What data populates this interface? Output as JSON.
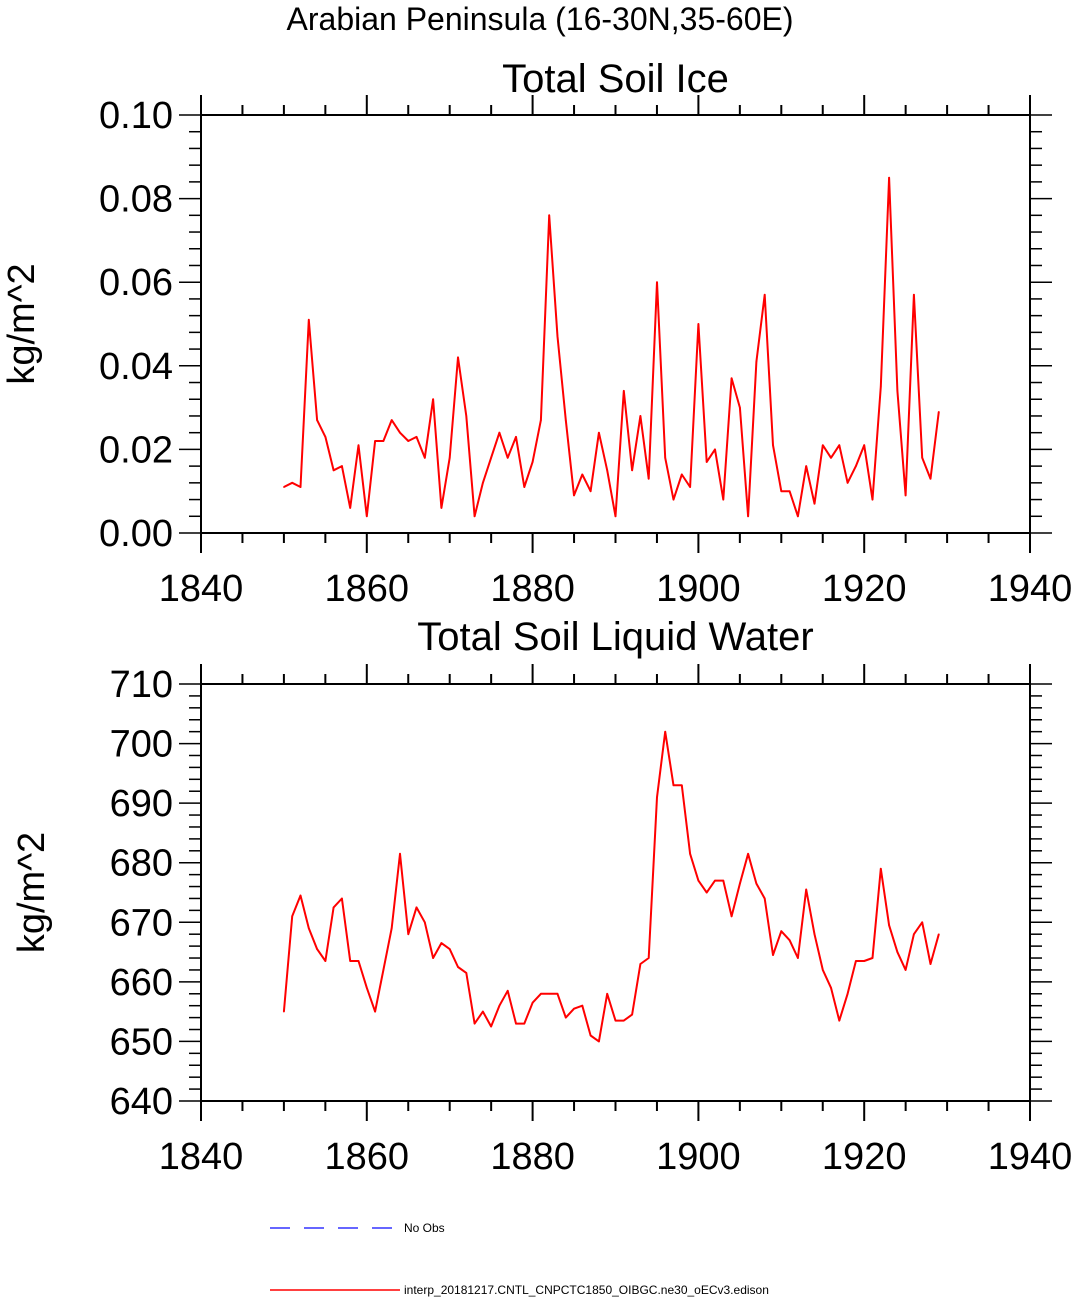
{
  "figure_title": "Arabian Peninsula (16-30N,35-60E)",
  "legend": [
    {
      "label": "No Obs",
      "color": "#3333ff",
      "style": "dashed"
    },
    {
      "label": "interp_20181217.CNTL_CNPCTC1850_OIBGC.ne30_oECv3.edison",
      "color": "#ff0000",
      "style": "solid"
    }
  ],
  "chart_data": [
    {
      "type": "line",
      "title": "Total Soil Ice",
      "xlabel": "",
      "ylabel": "kg/m^2",
      "xlim": [
        1840,
        1940
      ],
      "ylim": [
        0,
        0.1
      ],
      "xticks": [
        1840,
        1860,
        1880,
        1900,
        1920,
        1940
      ],
      "yticks": [
        0.0,
        0.02,
        0.04,
        0.06,
        0.08,
        0.1
      ],
      "ytick_labels": [
        "0.00",
        "0.02",
        "0.04",
        "0.06",
        "0.08",
        "0.10"
      ],
      "series": [
        {
          "name": "interp_20181217.CNTL_CNPCTC1850_OIBGC.ne30_oECv3.edison",
          "color": "#ff0000",
          "x": [
            1850,
            1851,
            1852,
            1853,
            1854,
            1855,
            1856,
            1857,
            1858,
            1859,
            1860,
            1861,
            1862,
            1863,
            1864,
            1865,
            1866,
            1867,
            1868,
            1869,
            1870,
            1871,
            1872,
            1873,
            1874,
            1875,
            1876,
            1877,
            1878,
            1879,
            1880,
            1881,
            1882,
            1883,
            1884,
            1885,
            1886,
            1887,
            1888,
            1889,
            1890,
            1891,
            1892,
            1893,
            1894,
            1895,
            1896,
            1897,
            1898,
            1899,
            1900,
            1901,
            1902,
            1903,
            1904,
            1905,
            1906,
            1907,
            1908,
            1909,
            1910,
            1911,
            1912,
            1913,
            1914,
            1915,
            1916,
            1917,
            1918,
            1919,
            1920,
            1921,
            1922,
            1923,
            1924,
            1925,
            1926,
            1927,
            1928,
            1929
          ],
          "values": [
            0.011,
            0.012,
            0.011,
            0.051,
            0.027,
            0.023,
            0.015,
            0.016,
            0.006,
            0.021,
            0.004,
            0.022,
            0.022,
            0.027,
            0.024,
            0.022,
            0.023,
            0.018,
            0.032,
            0.006,
            0.018,
            0.042,
            0.028,
            0.004,
            0.012,
            0.018,
            0.024,
            0.018,
            0.023,
            0.011,
            0.017,
            0.027,
            0.076,
            0.047,
            0.027,
            0.009,
            0.014,
            0.01,
            0.024,
            0.015,
            0.004,
            0.034,
            0.015,
            0.028,
            0.013,
            0.06,
            0.018,
            0.008,
            0.014,
            0.011,
            0.05,
            0.017,
            0.02,
            0.008,
            0.037,
            0.03,
            0.004,
            0.041,
            0.057,
            0.021,
            0.01,
            0.01,
            0.004,
            0.016,
            0.007,
            0.021,
            0.018,
            0.021,
            0.012,
            0.016,
            0.021,
            0.008,
            0.035,
            0.085,
            0.034,
            0.009,
            0.057,
            0.018,
            0.013,
            0.029
          ]
        }
      ]
    },
    {
      "type": "line",
      "title": "Total Soil Liquid Water",
      "xlabel": "",
      "ylabel": "kg/m^2",
      "xlim": [
        1840,
        1940
      ],
      "ylim": [
        640,
        710
      ],
      "xticks": [
        1840,
        1860,
        1880,
        1900,
        1920,
        1940
      ],
      "yticks": [
        640,
        650,
        660,
        670,
        680,
        690,
        700,
        710
      ],
      "ytick_labels": [
        "640",
        "650",
        "660",
        "670",
        "680",
        "690",
        "700",
        "710"
      ],
      "series": [
        {
          "name": "interp_20181217.CNTL_CNPCTC1850_OIBGC.ne30_oECv3.edison",
          "color": "#ff0000",
          "x": [
            1850,
            1851,
            1852,
            1853,
            1854,
            1855,
            1856,
            1857,
            1858,
            1859,
            1860,
            1861,
            1862,
            1863,
            1864,
            1865,
            1866,
            1867,
            1868,
            1869,
            1870,
            1871,
            1872,
            1873,
            1874,
            1875,
            1876,
            1877,
            1878,
            1879,
            1880,
            1881,
            1882,
            1883,
            1884,
            1885,
            1886,
            1887,
            1888,
            1889,
            1890,
            1891,
            1892,
            1893,
            1894,
            1895,
            1896,
            1897,
            1898,
            1899,
            1900,
            1901,
            1902,
            1903,
            1904,
            1905,
            1906,
            1907,
            1908,
            1909,
            1910,
            1911,
            1912,
            1913,
            1914,
            1915,
            1916,
            1917,
            1918,
            1919,
            1920,
            1921,
            1922,
            1923,
            1924,
            1925,
            1926,
            1927,
            1928,
            1929
          ],
          "values": [
            655,
            671,
            674.5,
            669,
            665.5,
            663.5,
            672.5,
            674,
            663.5,
            663.5,
            659,
            655,
            662,
            669,
            681.5,
            668,
            672.5,
            670,
            664,
            666.5,
            665.5,
            662.5,
            661.5,
            653,
            655,
            652.5,
            656,
            658.5,
            653,
            653,
            656.5,
            658,
            658,
            658,
            654,
            655.5,
            656,
            651,
            650,
            658,
            653.5,
            653.5,
            654.5,
            663,
            664,
            691,
            702,
            693,
            693,
            681.5,
            677,
            675,
            677,
            677,
            671,
            676.5,
            681.5,
            676.5,
            674,
            664.5,
            668.5,
            667,
            664,
            675.5,
            668,
            662,
            659,
            653.5,
            658,
            663.5,
            663.5,
            664,
            679,
            669.5,
            665,
            662,
            668,
            670,
            663,
            668
          ]
        }
      ]
    }
  ]
}
